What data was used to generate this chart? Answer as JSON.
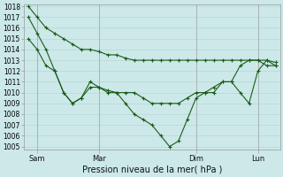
{
  "xlabel": "Pression niveau de la mer( hPa )",
  "bg_color": "#cce8e8",
  "grid_color": "#b8d8d8",
  "line_color": "#1a5c1a",
  "spine_color": "#999999",
  "ylim_min": 1005,
  "ylim_max": 1018,
  "yticks": [
    1005,
    1006,
    1007,
    1008,
    1009,
    1010,
    1011,
    1012,
    1013,
    1014,
    1015,
    1016,
    1017,
    1018
  ],
  "xtick_labels": [
    "Sam",
    "Mar",
    "Dim",
    "Lun"
  ],
  "xtick_positions": [
    1,
    8,
    19,
    26
  ],
  "series1": [
    1018,
    1017,
    1016,
    1015.5,
    1015,
    1014.5,
    1014,
    1014,
    1013.8,
    1013.5,
    1013.5,
    1013.2,
    1013,
    1013,
    1013,
    1013,
    1013,
    1013,
    1013,
    1013,
    1013,
    1013,
    1013,
    1013,
    1013,
    1013,
    1013,
    1013,
    1012.8
  ],
  "series2": [
    1017,
    1015.5,
    1014,
    1012,
    1010,
    1009,
    1009.5,
    1011,
    1010.5,
    1010,
    1010,
    1009,
    1008,
    1007.5,
    1007,
    1006,
    1005,
    1005.5,
    1007.5,
    1009.5,
    1010,
    1010,
    1011,
    1011,
    1010,
    1009,
    1012,
    1013,
    1012.5
  ],
  "series3": [
    1015,
    1014,
    1012.5,
    1012,
    1010,
    1009,
    1009.5,
    1010.5,
    1010.5,
    1010.2,
    1010,
    1010,
    1010,
    1009.5,
    1009,
    1009,
    1009,
    1009,
    1009.5,
    1010,
    1010,
    1010.5,
    1011,
    1011,
    1012.5,
    1013,
    1013,
    1012.5,
    1012.5
  ],
  "ytick_fontsize": 5.5,
  "xtick_fontsize": 6.0,
  "xlabel_fontsize": 7.0,
  "marker_size": 2.5,
  "linewidth": 0.8
}
